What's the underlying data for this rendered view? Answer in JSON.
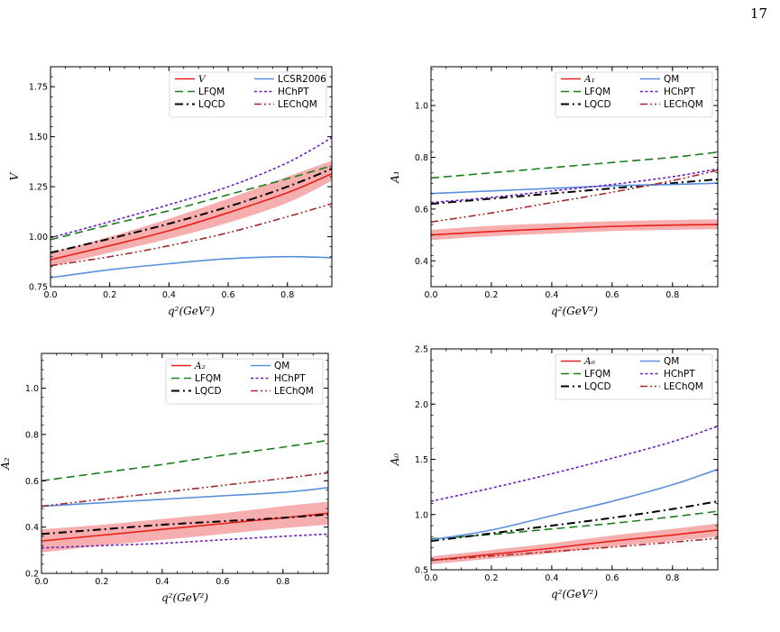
{
  "page": {
    "number": "17"
  },
  "colors": {
    "V": "#e8211a",
    "A1": "#e8211a",
    "A2": "#e8211a",
    "A0": "#e8211a",
    "band": "#f4a0a0",
    "LFQM": "#1b7d1b",
    "LQCD": "#000000",
    "LCSR2006": "#5a8fdc",
    "QM": "#5a8fdc",
    "HChPT": "#6a1ec0",
    "LEChQM": "#a52a2a"
  },
  "chart_data": [
    {
      "type": "line",
      "panel": "V",
      "xlabel": "q²(GeV²)",
      "ylabel": "V",
      "xlim": [
        0,
        0.95
      ],
      "ylim": [
        0.75,
        1.85
      ],
      "xticks": [
        "0.0",
        "0.2",
        "0.4",
        "0.6",
        "0.8"
      ],
      "xtick_values": [
        0,
        0.2,
        0.4,
        0.6,
        0.8
      ],
      "yticks": [
        "0.75",
        "1.00",
        "1.25",
        "1.50",
        "1.75"
      ],
      "ytick_values": [
        0.75,
        1.0,
        1.25,
        1.5,
        1.75
      ],
      "legend_placement": "top-right",
      "x": [
        0,
        0.2,
        0.4,
        0.6,
        0.8,
        0.95
      ],
      "band": {
        "lower": [
          0.85,
          0.92,
          0.99,
          1.07,
          1.17,
          1.28
        ],
        "upper": [
          0.92,
          1.0,
          1.09,
          1.19,
          1.3,
          1.38
        ]
      },
      "series": [
        {
          "key": "V",
          "name": "V",
          "math": true,
          "values": [
            0.885,
            0.955,
            1.03,
            1.12,
            1.22,
            1.315
          ]
        },
        {
          "key": "LFQM",
          "name": "LFQM",
          "values": [
            0.985,
            1.06,
            1.13,
            1.21,
            1.29,
            1.355
          ]
        },
        {
          "key": "LQCD",
          "name": "LQCD",
          "values": [
            0.92,
            0.99,
            1.065,
            1.15,
            1.25,
            1.34
          ]
        },
        {
          "key": "LCSR2006",
          "name": "LCSR2006",
          "values": [
            0.795,
            0.835,
            0.865,
            0.89,
            0.9,
            0.895
          ]
        },
        {
          "key": "HChPT",
          "name": "HChPT",
          "values": [
            0.995,
            1.075,
            1.16,
            1.25,
            1.37,
            1.495
          ]
        },
        {
          "key": "LEChQM",
          "name": "LEChQM",
          "values": [
            0.855,
            0.9,
            0.955,
            1.02,
            1.1,
            1.165
          ]
        }
      ]
    },
    {
      "type": "line",
      "panel": "A1",
      "xlabel": "q²(GeV²)",
      "ylabel": "A₁",
      "xlim": [
        0,
        0.95
      ],
      "ylim": [
        0.3,
        1.15
      ],
      "xticks": [
        "0.0",
        "0.2",
        "0.4",
        "0.6",
        "0.8"
      ],
      "xtick_values": [
        0,
        0.2,
        0.4,
        0.6,
        0.8
      ],
      "yticks": [
        "0.4",
        "0.6",
        "0.8",
        "1.0"
      ],
      "ytick_values": [
        0.4,
        0.6,
        0.8,
        1.0
      ],
      "legend_placement": "top-right",
      "x": [
        0,
        0.2,
        0.4,
        0.6,
        0.8,
        0.95
      ],
      "band": {
        "lower": [
          0.48,
          0.495,
          0.505,
          0.515,
          0.52,
          0.522
        ],
        "upper": [
          0.52,
          0.535,
          0.545,
          0.553,
          0.558,
          0.56
        ]
      },
      "series": [
        {
          "key": "A1",
          "name": "A₁",
          "math": true,
          "values": [
            0.5,
            0.513,
            0.524,
            0.533,
            0.538,
            0.54
          ]
        },
        {
          "key": "LFQM",
          "name": "LFQM",
          "values": [
            0.72,
            0.74,
            0.76,
            0.78,
            0.8,
            0.82
          ]
        },
        {
          "key": "LQCD",
          "name": "LQCD",
          "values": [
            0.62,
            0.64,
            0.66,
            0.68,
            0.7,
            0.715
          ]
        },
        {
          "key": "QM",
          "name": "QM",
          "values": [
            0.66,
            0.67,
            0.68,
            0.69,
            0.695,
            0.7
          ]
        },
        {
          "key": "HChPT",
          "name": "HChPT",
          "values": [
            0.625,
            0.645,
            0.67,
            0.695,
            0.725,
            0.755
          ]
        },
        {
          "key": "LEChQM",
          "name": "LEChQM",
          "values": [
            0.55,
            0.585,
            0.625,
            0.665,
            0.71,
            0.75
          ]
        }
      ]
    },
    {
      "type": "line",
      "panel": "A2",
      "xlabel": "q²(GeV²)",
      "ylabel": "A₂",
      "xlim": [
        0,
        0.95
      ],
      "ylim": [
        0.2,
        1.15
      ],
      "xticks": [
        "0.0",
        "0.2",
        "0.4",
        "0.6",
        "0.8"
      ],
      "xtick_values": [
        0,
        0.2,
        0.4,
        0.6,
        0.8
      ],
      "yticks": [
        "0.2",
        "0.4",
        "0.6",
        "0.8",
        "1.0"
      ],
      "ytick_values": [
        0.2,
        0.4,
        0.6,
        0.8,
        1.0
      ],
      "legend_placement": "top-right",
      "x": [
        0,
        0.2,
        0.4,
        0.6,
        0.8,
        0.95
      ],
      "band": {
        "lower": [
          0.29,
          0.32,
          0.345,
          0.37,
          0.395,
          0.41
        ],
        "upper": [
          0.39,
          0.41,
          0.435,
          0.46,
          0.49,
          0.51
        ]
      },
      "series": [
        {
          "key": "A2",
          "name": "A₂",
          "math": true,
          "values": [
            0.34,
            0.365,
            0.39,
            0.415,
            0.44,
            0.46
          ]
        },
        {
          "key": "LFQM",
          "name": "LFQM",
          "values": [
            0.6,
            0.635,
            0.67,
            0.71,
            0.745,
            0.775
          ]
        },
        {
          "key": "LQCD",
          "name": "LQCD",
          "values": [
            0.37,
            0.39,
            0.41,
            0.425,
            0.44,
            0.455
          ]
        },
        {
          "key": "QM",
          "name": "QM",
          "values": [
            0.49,
            0.505,
            0.52,
            0.535,
            0.55,
            0.57
          ]
        },
        {
          "key": "HChPT",
          "name": "HChPT",
          "values": [
            0.31,
            0.32,
            0.33,
            0.345,
            0.36,
            0.37
          ]
        },
        {
          "key": "LEChQM",
          "name": "LEChQM",
          "values": [
            0.49,
            0.52,
            0.55,
            0.58,
            0.61,
            0.635
          ]
        }
      ]
    },
    {
      "type": "line",
      "panel": "A0",
      "xlabel": "q²(GeV²)",
      "ylabel": "A₀",
      "xlim": [
        0,
        0.95
      ],
      "ylim": [
        0.5,
        2.5
      ],
      "xticks": [
        "0.0",
        "0.2",
        "0.4",
        "0.6",
        "0.8"
      ],
      "xtick_values": [
        0,
        0.2,
        0.4,
        0.6,
        0.8
      ],
      "yticks": [
        "0.5",
        "1.0",
        "1.5",
        "2.0",
        "2.5"
      ],
      "ytick_values": [
        0.5,
        1.0,
        1.5,
        2.0,
        2.5
      ],
      "legend_placement": "top-right",
      "x": [
        0,
        0.2,
        0.4,
        0.6,
        0.8,
        0.95
      ],
      "band": {
        "lower": [
          0.55,
          0.6,
          0.65,
          0.71,
          0.76,
          0.8
        ],
        "upper": [
          0.62,
          0.68,
          0.74,
          0.81,
          0.87,
          0.92
        ]
      },
      "series": [
        {
          "key": "A0",
          "name": "A₀",
          "math": true,
          "values": [
            0.585,
            0.64,
            0.695,
            0.76,
            0.815,
            0.86
          ]
        },
        {
          "key": "LFQM",
          "name": "LFQM",
          "values": [
            0.78,
            0.82,
            0.87,
            0.92,
            0.98,
            1.03
          ]
        },
        {
          "key": "LQCD",
          "name": "LQCD",
          "values": [
            0.76,
            0.83,
            0.9,
            0.97,
            1.05,
            1.12
          ]
        },
        {
          "key": "QM",
          "name": "QM",
          "values": [
            0.77,
            0.86,
            0.99,
            1.12,
            1.27,
            1.41
          ]
        },
        {
          "key": "HChPT",
          "name": "HChPT",
          "values": [
            1.12,
            1.24,
            1.37,
            1.51,
            1.66,
            1.8
          ]
        },
        {
          "key": "LEChQM",
          "name": "LEChQM",
          "values": [
            0.585,
            0.625,
            0.665,
            0.705,
            0.75,
            0.785
          ]
        }
      ]
    }
  ]
}
